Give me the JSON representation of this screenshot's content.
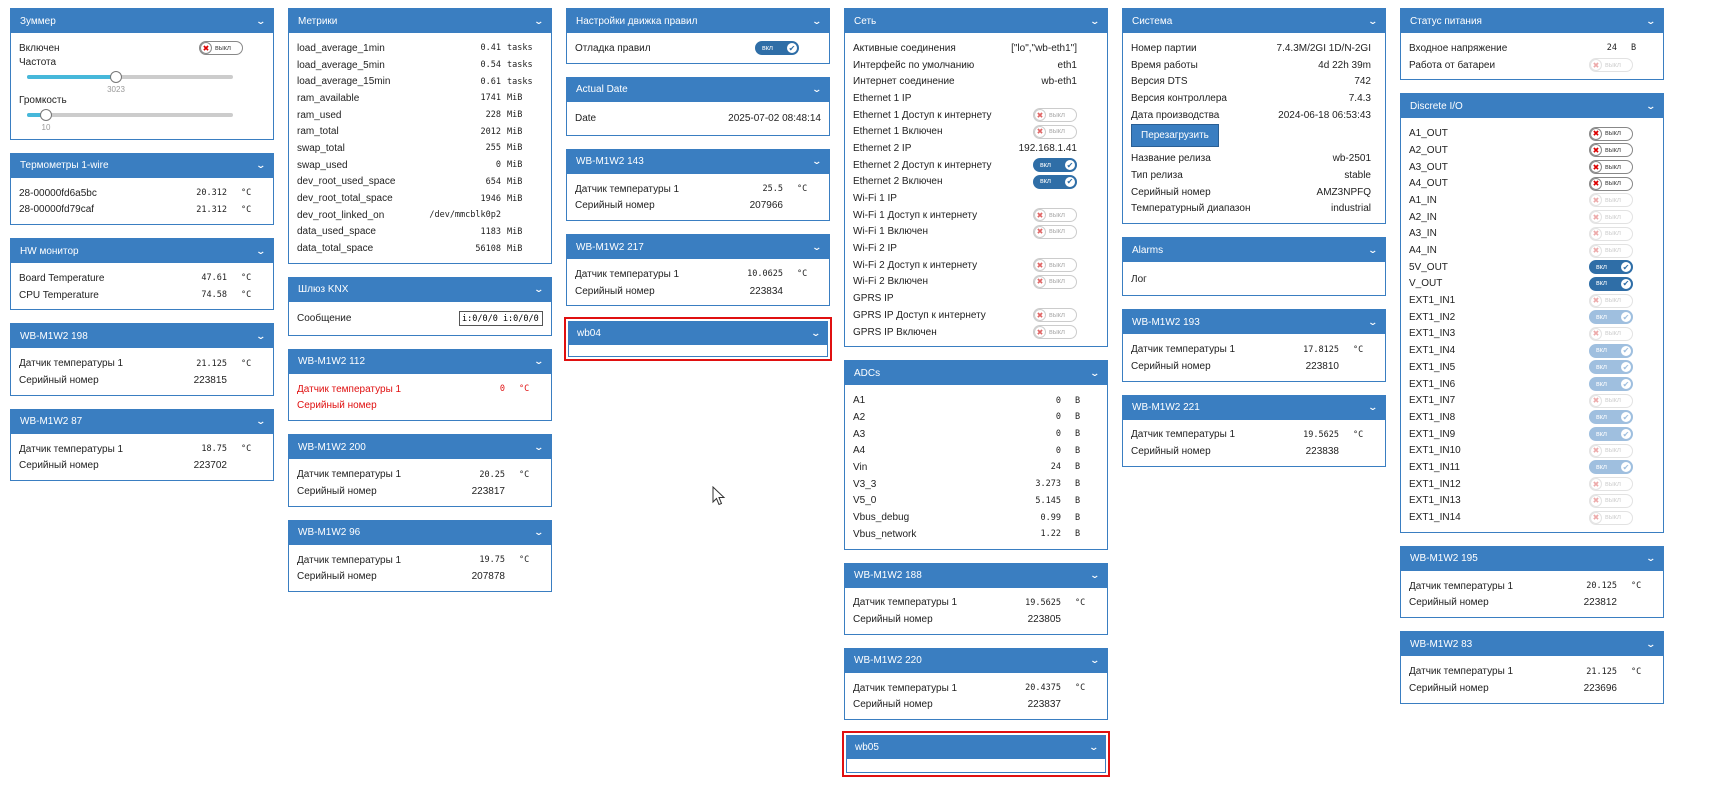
{
  "labels": {
    "off": "выкл",
    "on": "вкл"
  },
  "buzzer": {
    "title": "Зуммер",
    "enabled_label": "Включен",
    "freq_label": "Частота",
    "freq_value": "3023",
    "freq_fraction": 0.43,
    "volume_label": "Громкость",
    "volume_value": "10",
    "volume_fraction": 0.09
  },
  "onewire": {
    "title": "Термометры 1-wire",
    "rows": [
      {
        "name": "28-00000fd6a5bc",
        "value": "20.312",
        "unit": "°C"
      },
      {
        "name": "28-00000fd79caf",
        "value": "21.312",
        "unit": "°C"
      }
    ]
  },
  "hw": {
    "title": "HW монитор",
    "rows": [
      {
        "name": "Board Temperature",
        "value": "47.61",
        "unit": "°C"
      },
      {
        "name": "CPU Temperature",
        "value": "74.58",
        "unit": "°C"
      }
    ]
  },
  "w198": {
    "title": "WB-M1W2 198",
    "temp_label": "Датчик температуры 1",
    "temp": "21.125",
    "unit": "°C",
    "serial_label": "Серийный номер",
    "serial": "223815"
  },
  "w87": {
    "title": "WB-M1W2 87",
    "temp_label": "Датчик температуры 1",
    "temp": "18.75",
    "unit": "°C",
    "serial_label": "Серийный номер",
    "serial": "223702"
  },
  "metrics": {
    "title": "Метрики",
    "rows": [
      {
        "name": "load_average_1min",
        "value": "0.41",
        "unit": "tasks"
      },
      {
        "name": "load_average_5min",
        "value": "0.54",
        "unit": "tasks"
      },
      {
        "name": "load_average_15min",
        "value": "0.61",
        "unit": "tasks"
      },
      {
        "name": "ram_available",
        "value": "1741",
        "unit": "MiB"
      },
      {
        "name": "ram_used",
        "value": "228",
        "unit": "MiB"
      },
      {
        "name": "ram_total",
        "value": "2012",
        "unit": "MiB"
      },
      {
        "name": "swap_total",
        "value": "255",
        "unit": "MiB"
      },
      {
        "name": "swap_used",
        "value": "0",
        "unit": "MiB"
      },
      {
        "name": "dev_root_used_space",
        "value": "654",
        "unit": "MiB"
      },
      {
        "name": "dev_root_total_space",
        "value": "1946",
        "unit": "MiB"
      },
      {
        "name": "dev_root_linked_on",
        "value": "/dev/mmcblk0p2",
        "unit": ""
      },
      {
        "name": "data_used_space",
        "value": "1183",
        "unit": "MiB"
      },
      {
        "name": "data_total_space",
        "value": "56108",
        "unit": "MiB"
      }
    ]
  },
  "knx": {
    "title": "Шлюз KNX",
    "msg_label": "Сообщение",
    "msg_value": "i:0/0/0 i:0/0/0"
  },
  "w112": {
    "title": "WB-M1W2 112",
    "temp_label": "Датчик температуры 1",
    "temp": "0",
    "unit": "°C",
    "serial_label": "Серийный номер"
  },
  "w200": {
    "title": "WB-M1W2 200",
    "temp_label": "Датчик температуры 1",
    "temp": "20.25",
    "unit": "°C",
    "serial_label": "Серийный номер",
    "serial": "223817"
  },
  "w96": {
    "title": "WB-M1W2 96",
    "temp_label": "Датчик температуры 1",
    "temp": "19.75",
    "unit": "°C",
    "serial_label": "Серийный номер",
    "serial": "207878"
  },
  "rules": {
    "title": "Настройки движка правил",
    "debug_label": "Отладка правил"
  },
  "date": {
    "title": "Actual Date",
    "label": "Date",
    "value": "2025-07-02 08:48:14"
  },
  "w143": {
    "title": "WB-M1W2 143",
    "temp_label": "Датчик температуры 1",
    "temp": "25.5",
    "unit": "°C",
    "serial_label": "Серийный номер",
    "serial": "207966"
  },
  "w217": {
    "title": "WB-M1W2 217",
    "temp_label": "Датчик температуры 1",
    "temp": "10.0625",
    "unit": "°C",
    "serial_label": "Серийный номер",
    "serial": "223834"
  },
  "wb04": {
    "title": "wb04"
  },
  "net": {
    "title": "Сеть",
    "rows": [
      {
        "name": "Активные соединения",
        "value": "[\"lo\",\"wb-eth1\"]"
      },
      {
        "name": "Интерфейс по умолчанию",
        "value": "eth1"
      },
      {
        "name": "Интернет соединение",
        "value": "wb-eth1"
      },
      {
        "name": "Ethernet 1 IP",
        "value": ""
      },
      {
        "name": "Ethernet 1 Доступ к интернету",
        "toggle": "off"
      },
      {
        "name": "Ethernet 1 Включен",
        "toggle": "off"
      },
      {
        "name": "Ethernet 2 IP",
        "value": "192.168.1.41"
      },
      {
        "name": "Ethernet 2 Доступ к интернету",
        "toggle": "on"
      },
      {
        "name": "Ethernet 2 Включен",
        "toggle": "on"
      },
      {
        "name": "Wi-Fi 1 IP",
        "value": ""
      },
      {
        "name": "Wi-Fi 1 Доступ к интернету",
        "toggle": "off"
      },
      {
        "name": "Wi-Fi 1 Включен",
        "toggle": "off"
      },
      {
        "name": "Wi-Fi 2 IP",
        "value": ""
      },
      {
        "name": "Wi-Fi 2 Доступ к интернету",
        "toggle": "off"
      },
      {
        "name": "Wi-Fi 2 Включен",
        "toggle": "off"
      },
      {
        "name": "GPRS IP",
        "value": ""
      },
      {
        "name": "GPRS IP Доступ к интернету",
        "toggle": "off"
      },
      {
        "name": "GPRS IP Включен",
        "toggle": "off"
      }
    ]
  },
  "adc": {
    "title": "ADCs",
    "rows": [
      {
        "name": "A1",
        "value": "0",
        "unit": "B"
      },
      {
        "name": "A2",
        "value": "0",
        "unit": "B"
      },
      {
        "name": "A3",
        "value": "0",
        "unit": "B"
      },
      {
        "name": "A4",
        "value": "0",
        "unit": "B"
      },
      {
        "name": "Vin",
        "value": "24",
        "unit": "B"
      },
      {
        "name": "V3_3",
        "value": "3.273",
        "unit": "B"
      },
      {
        "name": "V5_0",
        "value": "5.145",
        "unit": "B"
      },
      {
        "name": "Vbus_debug",
        "value": "0.99",
        "unit": "B"
      },
      {
        "name": "Vbus_network",
        "value": "1.22",
        "unit": "B"
      }
    ]
  },
  "w188": {
    "title": "WB-M1W2 188",
    "temp_label": "Датчик температуры 1",
    "temp": "19.5625",
    "unit": "°C",
    "serial_label": "Серийный номер",
    "serial": "223805"
  },
  "w220": {
    "title": "WB-M1W2 220",
    "temp_label": "Датчик температуры 1",
    "temp": "20.4375",
    "unit": "°C",
    "serial_label": "Серийный номер",
    "serial": "223837"
  },
  "wb05": {
    "title": "wb05"
  },
  "sys": {
    "title": "Система",
    "rows": [
      {
        "name": "Номер партии",
        "value": "7.4.3M/2GI 1D/N-2GI"
      },
      {
        "name": "Время работы",
        "value": "4d 22h 39m"
      },
      {
        "name": "Версия DTS",
        "value": "742"
      },
      {
        "name": "Версия контроллера",
        "value": "7.4.3"
      },
      {
        "name": "Дата производства",
        "value": "2024-06-18 06:53:43"
      }
    ],
    "reboot_label": "Перезагрузить",
    "rows2": [
      {
        "name": "Название релиза",
        "value": "wb-2501"
      },
      {
        "name": "Тип релиза",
        "value": "stable"
      },
      {
        "name": "Серийный номер",
        "value": "AMZ3NPFQ"
      },
      {
        "name": "Температурный диапазон",
        "value": "industrial"
      }
    ]
  },
  "alarms": {
    "title": "Alarms",
    "log_label": "Лог"
  },
  "w193": {
    "title": "WB-M1W2 193",
    "temp_label": "Датчик температуры 1",
    "temp": "17.8125",
    "unit": "°C",
    "serial_label": "Серийный номер",
    "serial": "223810"
  },
  "w221": {
    "title": "WB-M1W2 221",
    "temp_label": "Датчик температуры 1",
    "temp": "19.5625",
    "unit": "°C",
    "serial_label": "Серийный номер",
    "serial": "223838"
  },
  "power": {
    "title": "Статус питания",
    "input_label": "Входное напряжение",
    "input_value": "24",
    "input_unit": "B",
    "battery_label": "Работа от батареи"
  },
  "dio": {
    "title": "Discrete I/O",
    "rows": [
      {
        "name": "A1_OUT",
        "toggle": "off",
        "style": "strong"
      },
      {
        "name": "A2_OUT",
        "toggle": "off",
        "style": "strong"
      },
      {
        "name": "A3_OUT",
        "toggle": "off",
        "style": "strong"
      },
      {
        "name": "A4_OUT",
        "toggle": "off",
        "style": "strong"
      },
      {
        "name": "A1_IN",
        "toggle": "off",
        "style": "dis"
      },
      {
        "name": "A2_IN",
        "toggle": "off",
        "style": "dis"
      },
      {
        "name": "A3_IN",
        "toggle": "off",
        "style": "dis"
      },
      {
        "name": "A4_IN",
        "toggle": "off",
        "style": "dis"
      },
      {
        "name": "5V_OUT",
        "toggle": "on",
        "style": ""
      },
      {
        "name": "V_OUT",
        "toggle": "on",
        "style": ""
      },
      {
        "name": "EXT1_IN1",
        "toggle": "off",
        "style": "dis"
      },
      {
        "name": "EXT1_IN2",
        "toggle": "on",
        "style": "dis"
      },
      {
        "name": "EXT1_IN3",
        "toggle": "off",
        "style": "dis"
      },
      {
        "name": "EXT1_IN4",
        "toggle": "on",
        "style": "dis"
      },
      {
        "name": "EXT1_IN5",
        "toggle": "on",
        "style": "dis"
      },
      {
        "name": "EXT1_IN6",
        "toggle": "on",
        "style": "dis"
      },
      {
        "name": "EXT1_IN7",
        "toggle": "off",
        "style": "dis"
      },
      {
        "name": "EXT1_IN8",
        "toggle": "on",
        "style": "dis"
      },
      {
        "name": "EXT1_IN9",
        "toggle": "on",
        "style": "dis"
      },
      {
        "name": "EXT1_IN10",
        "toggle": "off",
        "style": "dis"
      },
      {
        "name": "EXT1_IN11",
        "toggle": "on",
        "style": "dis"
      },
      {
        "name": "EXT1_IN12",
        "toggle": "off",
        "style": "dis"
      },
      {
        "name": "EXT1_IN13",
        "toggle": "off",
        "style": "dis"
      },
      {
        "name": "EXT1_IN14",
        "toggle": "off",
        "style": "dis"
      }
    ]
  },
  "w195": {
    "title": "WB-M1W2 195",
    "temp_label": "Датчик температуры 1",
    "temp": "20.125",
    "unit": "°C",
    "serial_label": "Серийный номер",
    "serial": "223812"
  },
  "w83": {
    "title": "WB-M1W2 83",
    "temp_label": "Датчик температуры 1",
    "temp": "21.125",
    "unit": "°C",
    "serial_label": "Серийный номер",
    "serial": "223696"
  }
}
